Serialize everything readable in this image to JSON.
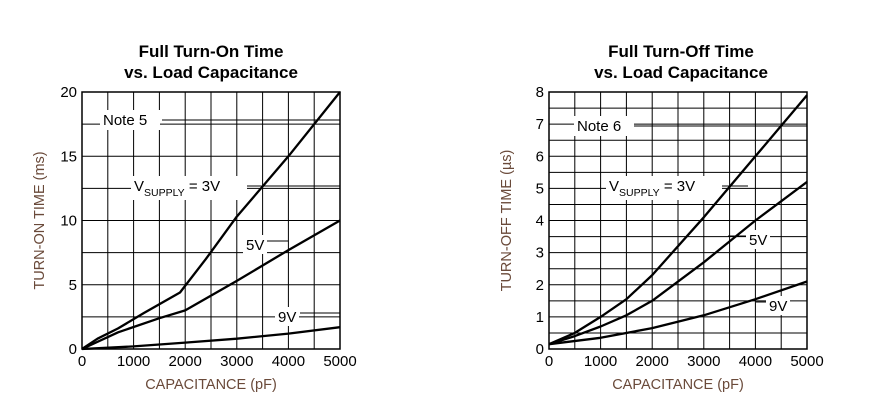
{
  "chart_data": [
    {
      "type": "line",
      "title_line1": "Full Turn-On Time",
      "title_line2": "vs. Load Capacitance",
      "xlabel": "CAPACITANCE (pF)",
      "ylabel": "TURN-ON TIME (ms)",
      "xlim": [
        0,
        5000
      ],
      "ylim": [
        0,
        20
      ],
      "xticks": [
        0,
        1000,
        2000,
        3000,
        4000,
        5000
      ],
      "yticks": [
        0,
        5,
        10,
        15,
        20
      ],
      "xgrid": [
        0,
        500,
        1000,
        1500,
        2000,
        2500,
        3000,
        3500,
        4000,
        4500,
        5000
      ],
      "ygrid": [
        0,
        2.5,
        5,
        7.5,
        10,
        12.5,
        15,
        17.5,
        20
      ],
      "note": "Note 5",
      "vsupply_prefix": "V",
      "vsupply_sub": "SUPPLY",
      "vsupply_suffix": " = 3V",
      "series": [
        {
          "name": "3V",
          "x": [
            0,
            300,
            700,
            1200,
            1900,
            2400,
            3000,
            4000,
            5000
          ],
          "y": [
            0,
            0.8,
            1.6,
            2.8,
            4.4,
            7.0,
            10.3,
            15.0,
            20.0
          ]
        },
        {
          "name": "5V",
          "x": [
            0,
            700,
            1500,
            2000,
            3000,
            4000,
            5000
          ],
          "y": [
            0,
            1.3,
            2.4,
            3.0,
            5.3,
            7.7,
            10.0
          ]
        },
        {
          "name": "9V",
          "x": [
            0,
            1000,
            2000,
            3000,
            4000,
            5000
          ],
          "y": [
            0,
            0.2,
            0.5,
            0.8,
            1.2,
            1.7
          ]
        }
      ],
      "labels": [
        {
          "text": "5V",
          "series": "5V"
        },
        {
          "text": "9V",
          "series": "9V"
        }
      ]
    },
    {
      "type": "line",
      "title_line1": "Full Turn-Off Time",
      "title_line2": "vs. Load Capacitance",
      "xlabel": "CAPACITANCE (pF)",
      "ylabel": "TURN-OFF TIME (µs)",
      "xlim": [
        0,
        5000
      ],
      "ylim": [
        0,
        8
      ],
      "xticks": [
        0,
        1000,
        2000,
        3000,
        4000,
        5000
      ],
      "yticks": [
        0,
        1,
        2,
        3,
        4,
        5,
        6,
        7,
        8
      ],
      "xgrid": [
        0,
        500,
        1000,
        1500,
        2000,
        2500,
        3000,
        3500,
        4000,
        4500,
        5000
      ],
      "ygrid": [
        0,
        0.5,
        1,
        1.5,
        2,
        2.5,
        3,
        3.5,
        4,
        4.5,
        5,
        5.5,
        6,
        6.5,
        7,
        7.5,
        8
      ],
      "note": "Note 6",
      "vsupply_prefix": "V",
      "vsupply_sub": "SUPPLY",
      "vsupply_suffix": " = 3V",
      "series": [
        {
          "name": "3V",
          "x": [
            0,
            500,
            1000,
            1500,
            2000,
            3000,
            4000,
            5000
          ],
          "y": [
            0.15,
            0.5,
            1.0,
            1.55,
            2.3,
            4.1,
            6.0,
            7.9
          ]
        },
        {
          "name": "5V",
          "x": [
            0,
            500,
            1000,
            1500,
            2000,
            3000,
            4000,
            5000
          ],
          "y": [
            0.15,
            0.4,
            0.7,
            1.05,
            1.5,
            2.7,
            4.0,
            5.2
          ]
        },
        {
          "name": "9V",
          "x": [
            0,
            1000,
            2000,
            3000,
            4000,
            5000
          ],
          "y": [
            0.15,
            0.35,
            0.65,
            1.05,
            1.55,
            2.1
          ]
        }
      ],
      "labels": [
        {
          "text": "5V",
          "series": "5V"
        },
        {
          "text": "9V",
          "series": "9V"
        }
      ]
    }
  ]
}
